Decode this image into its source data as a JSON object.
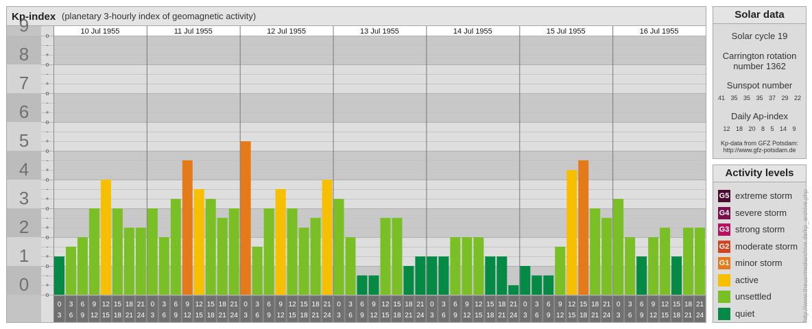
{
  "chart_data": {
    "type": "bar",
    "title": "Kp-index",
    "subtitle": "(planetary 3-hourly index of geomagnetic activity)",
    "ylim": [
      0,
      9
    ],
    "y_ticks": [
      "0",
      "1",
      "2",
      "3",
      "4",
      "5",
      "6",
      "7",
      "8",
      "9"
    ],
    "y_minor_ticks": [
      "-",
      "o",
      "+"
    ],
    "days": [
      "10 Jul 1955",
      "11 Jul 1955",
      "12 Jul 1955",
      "13 Jul 1955",
      "14 Jul 1955",
      "15 Jul 1955",
      "16 Jul 1955"
    ],
    "interval_labels": [
      [
        "0",
        "3"
      ],
      [
        "3",
        "6"
      ],
      [
        "6",
        "9"
      ],
      [
        "9",
        "12"
      ],
      [
        "12",
        "15"
      ],
      [
        "15",
        "18"
      ],
      [
        "18",
        "21"
      ],
      [
        "21",
        "24"
      ]
    ],
    "values": [
      [
        1.33,
        1.67,
        2.0,
        3.0,
        4.0,
        3.0,
        2.33,
        2.33
      ],
      [
        3.0,
        2.0,
        3.33,
        4.67,
        3.67,
        3.33,
        2.67,
        3.0
      ],
      [
        5.33,
        1.67,
        3.0,
        3.67,
        3.0,
        2.33,
        2.67,
        4.0
      ],
      [
        3.33,
        2.0,
        0.67,
        0.67,
        2.67,
        2.67,
        1.0,
        1.33
      ],
      [
        1.33,
        1.33,
        2.0,
        2.0,
        2.0,
        1.33,
        1.33,
        0.33
      ],
      [
        1.0,
        0.67,
        0.67,
        1.67,
        4.33,
        4.67,
        3.0,
        2.67
      ],
      [
        3.33,
        2.0,
        1.33,
        2.0,
        2.33,
        1.33,
        2.33,
        2.33
      ]
    ],
    "grid": true,
    "legend_placement": "right"
  },
  "solar_data": {
    "title": "Solar data",
    "cycle": "Solar cycle 19",
    "carrington_line1": "Carrington rotation",
    "carrington_line2": "number 1362",
    "sunspot_label": "Sunspot number",
    "sunspot_values": "41 35 35 35 37 29 22",
    "ap_label": "Daily Ap-index",
    "ap_values": "12 18 20 8 5 14 9",
    "source_line1": "Kp-data from GFZ Potsdam:",
    "source_line2": "http://www.gfz-potsdam.de"
  },
  "activity_levels": {
    "title": "Activity levels",
    "items": [
      {
        "badge": "G5",
        "label": "extreme storm",
        "color": "#4d0a2e"
      },
      {
        "badge": "G4",
        "label": "severe storm",
        "color": "#7a0f4a"
      },
      {
        "badge": "G3",
        "label": "strong storm",
        "color": "#b5135f"
      },
      {
        "badge": "G2",
        "label": "moderate storm",
        "color": "#d2451f"
      },
      {
        "badge": "G1",
        "label": "minor storm",
        "color": "#e57a1a"
      },
      {
        "badge": "",
        "label": "active",
        "color": "#f6c000"
      },
      {
        "badge": "",
        "label": "unsettled",
        "color": "#7bbf27"
      },
      {
        "badge": "",
        "label": "quiet",
        "color": "#048a45"
      }
    ]
  },
  "credit": "http://www.theusrmediarchive.de/kp_archive.php"
}
